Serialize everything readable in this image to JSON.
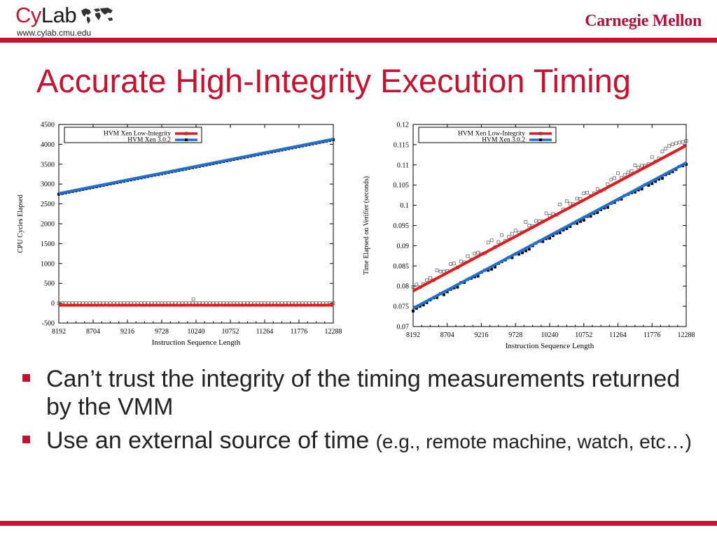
{
  "header": {
    "logo_prefix": "Cy",
    "logo_suffix": "Lab",
    "logo_url": "www.cylab.cmu.edu",
    "university": "Carnegie Mellon"
  },
  "slide": {
    "title": "Accurate High-Integrity Execution Timing",
    "bullets": [
      {
        "text": "Can’t trust the integrity of the timing measurements returned by the VMM",
        "small": ""
      },
      {
        "text": "Use an external source of time ",
        "small": "(e.g., remote machine, watch, etc…)"
      }
    ]
  },
  "colors": {
    "accent": "#c41230",
    "series_low_integrity": "#e31a1c",
    "series_xen": "#1f6fd1"
  },
  "chart_data": [
    {
      "type": "scatter",
      "title": "",
      "xlabel": "Instruction Sequence Length",
      "ylabel": "CPU Cycles Elapsed",
      "xlim": [
        8192,
        12288
      ],
      "ylim": [
        -500,
        4500
      ],
      "xticks": [
        8192,
        8704,
        9216,
        9728,
        10240,
        10752,
        11264,
        11776,
        12288
      ],
      "yticks": [
        -500,
        0,
        500,
        1000,
        1500,
        2000,
        2500,
        3000,
        3500,
        4000,
        4500
      ],
      "grid": false,
      "legend": "top-left",
      "series": [
        {
          "name": "HVM Xen Low-Integrity",
          "marker": "open-square",
          "line_color": "#e31a1c",
          "fit": [
            [
              8192,
              -50
            ],
            [
              12288,
              -50
            ]
          ],
          "points": "flat near 0",
          "outlier": [
            10200,
            100
          ]
        },
        {
          "name": "HVM Xen 3.0.2",
          "marker": "filled-square",
          "line_color": "#1f6fd1",
          "fit": [
            [
              8192,
              2760
            ],
            [
              12288,
              4130
            ]
          ]
        }
      ]
    },
    {
      "type": "scatter",
      "title": "",
      "xlabel": "Instruction Sequence Length",
      "ylabel": "Time Elapsed on Verifier (seconds)",
      "xlim": [
        8192,
        12288
      ],
      "ylim": [
        0.07,
        0.12
      ],
      "xticks": [
        8192,
        8704,
        9216,
        9728,
        10240,
        10752,
        11264,
        11776,
        12288
      ],
      "yticks": [
        "0.07",
        "0.075",
        "0.08",
        "0.085",
        "0.09",
        "0.095",
        "0.1",
        "0.105",
        "0.11",
        "0.115",
        "0.12"
      ],
      "grid": false,
      "legend": "top-left",
      "series": [
        {
          "name": "HVM Xen Low-Integrity",
          "marker": "open-square",
          "line_color": "#e31a1c",
          "fit": [
            [
              8192,
              0.0788
            ],
            [
              12288,
              0.1148
            ]
          ]
        },
        {
          "name": "HVM Xen 3.0.2",
          "marker": "filled-square",
          "line_color": "#1f6fd1",
          "fit": [
            [
              8192,
              0.0745
            ],
            [
              12288,
              0.1105
            ]
          ]
        }
      ]
    }
  ]
}
